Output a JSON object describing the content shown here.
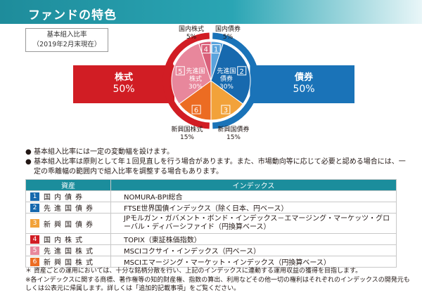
{
  "header": {
    "title": "ファンドの特色"
  },
  "basis": {
    "line1": "基本組入比率",
    "line2": "（2019年2月末現在）"
  },
  "equity_box": {
    "label": "株式",
    "pct": "50%"
  },
  "bond_box": {
    "label": "債券",
    "pct": "50%"
  },
  "chart_data": {
    "type": "pie",
    "slices": [
      {
        "num": "1",
        "name": "国内債券",
        "value": 5,
        "color": "#5aa3dc"
      },
      {
        "num": "2",
        "name": "先進国債券",
        "value": 30,
        "color": "#1769ae"
      },
      {
        "num": "3",
        "name": "新興国債券",
        "value": 15,
        "color": "#f2a23a"
      },
      {
        "num": "6",
        "name": "新興国株式",
        "value": 15,
        "color": "#ec6c22"
      },
      {
        "num": "5",
        "name": "先進国株式",
        "value": 30,
        "color": "#e8879c"
      },
      {
        "num": "4",
        "name": "国内株式",
        "value": 5,
        "color": "#d9607a"
      }
    ],
    "inner_labels": [
      {
        "name": "先進国債券",
        "pct": "30%"
      },
      {
        "name": "先進国株式",
        "pct": "30%"
      }
    ],
    "outer_labels": [
      {
        "name": "国内債券",
        "pct": "5%"
      },
      {
        "name": "国内株式",
        "pct": "5%"
      },
      {
        "name": "新興国株式",
        "pct": "15%"
      },
      {
        "name": "新興国債券",
        "pct": "15%"
      }
    ]
  },
  "notes": [
    "基本組入比率には一定の変動幅を設けます。",
    "基本組入比率は原則として年１回見直しを行う場合があります。また、市場動向等に応じて必要と認める場合には、一定の乖離幅の範囲内で組入比率を調整する場合もあります。"
  ],
  "table": {
    "headers": [
      "資産",
      "インデックス"
    ],
    "rows": [
      {
        "num": "1",
        "color": "#1769ae",
        "asset": "国内債券",
        "index": "NOMURA-BPI総合"
      },
      {
        "num": "2",
        "color": "#1769ae",
        "asset": "先進国債券",
        "index": "FTSE世界国債インデックス（除く日本、円ベース）"
      },
      {
        "num": "3",
        "color": "#f2a23a",
        "asset": "新興国債券",
        "index": "JPモルガン・ガバメント・ボンド・インデックス－エマージング・マーケッツ・グローバル・ディバーシファイド（円換算ベース）"
      },
      {
        "num": "4",
        "color": "#d11d24",
        "asset": "国内株式",
        "index": "TOPIX（東証株価指数）"
      },
      {
        "num": "5",
        "color": "#e8879c",
        "asset": "先進国株式",
        "index": "MSCIコクサイ・インデックス（円ベース）"
      },
      {
        "num": "6",
        "color": "#ec6c22",
        "asset": "新興国株式",
        "index": "MSCIエマージング・マーケット・インデックス（円換算ベース）"
      }
    ]
  },
  "footnotes": [
    "＊ 資産ごとの運用においては、十分な銘柄分散を行い、上記のインデックスに連動する運用収益の獲得を目指します。",
    "※各インデックスに関する商標、著作権等の知的財産権、指数の算出、利用などその他一切の権利はそれぞれのインデックスの開発元もしくは公表元に帰属します。詳しくは「追加的記載事項」をご覧ください。"
  ]
}
